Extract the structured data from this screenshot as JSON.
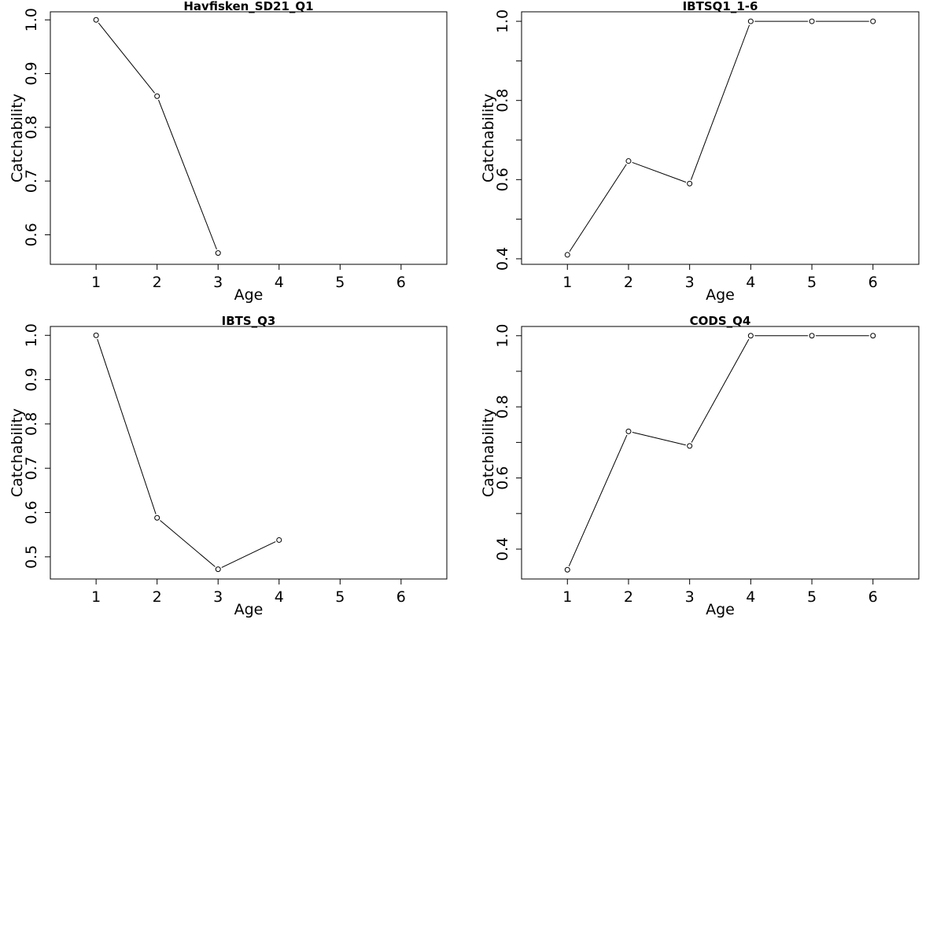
{
  "chart_data": [
    {
      "type": "line",
      "title": "Havfisken_SD21_Q1",
      "xlabel": "Age",
      "ylabel": "Catchability",
      "xlim": [
        0.25,
        6.75
      ],
      "ylim": [
        0.545,
        1.015
      ],
      "xticks": [
        1,
        2,
        3,
        4,
        5,
        6
      ],
      "xtick_labels": [
        "1",
        "2",
        "3",
        "4",
        "5",
        "6"
      ],
      "yticks": [
        0.6,
        0.7,
        0.8,
        0.9,
        1.0
      ],
      "ytick_labels": [
        "0.6",
        "0.7",
        "0.8",
        "0.9",
        "1.0"
      ],
      "x": [
        1,
        2,
        3
      ],
      "y": [
        1.0,
        0.858,
        0.566
      ]
    },
    {
      "type": "line",
      "title": "IBTSQ1_1-6",
      "xlabel": "Age",
      "ylabel": "Catchability",
      "xlim": [
        0.25,
        6.75
      ],
      "ylim": [
        0.386,
        1.024
      ],
      "xticks": [
        1,
        2,
        3,
        4,
        5,
        6
      ],
      "xtick_labels": [
        "1",
        "2",
        "3",
        "4",
        "5",
        "6"
      ],
      "yticks": [
        0.4,
        0.5,
        0.6,
        0.7,
        0.8,
        0.9,
        1.0
      ],
      "ytick_labels": [
        "0.4",
        "",
        "0.6",
        "",
        "0.8",
        "",
        "1.0"
      ],
      "x": [
        1,
        2,
        3,
        4,
        5,
        6
      ],
      "y": [
        0.41,
        0.647,
        0.59,
        1.0,
        1.0,
        1.0
      ]
    },
    {
      "type": "line",
      "title": "IBTS_Q3",
      "xlabel": "Age",
      "ylabel": "Catchability",
      "xlim": [
        0.25,
        6.75
      ],
      "ylim": [
        0.45,
        1.02
      ],
      "xticks": [
        1,
        2,
        3,
        4,
        5,
        6
      ],
      "xtick_labels": [
        "1",
        "2",
        "3",
        "4",
        "5",
        "6"
      ],
      "yticks": [
        0.5,
        0.6,
        0.7,
        0.8,
        0.9,
        1.0
      ],
      "ytick_labels": [
        "0.5",
        "0.6",
        "0.7",
        "0.8",
        "0.9",
        "1.0"
      ],
      "x": [
        1,
        2,
        3,
        4
      ],
      "y": [
        1.0,
        0.588,
        0.472,
        0.538
      ]
    },
    {
      "type": "line",
      "title": "CODS_Q4",
      "xlabel": "Age",
      "ylabel": "Catchability",
      "xlim": [
        0.25,
        6.75
      ],
      "ylim": [
        0.316,
        1.026
      ],
      "xticks": [
        1,
        2,
        3,
        4,
        5,
        6
      ],
      "xtick_labels": [
        "1",
        "2",
        "3",
        "4",
        "5",
        "6"
      ],
      "yticks": [
        0.4,
        0.5,
        0.6,
        0.7,
        0.8,
        0.9,
        1.0
      ],
      "ytick_labels": [
        "0.4",
        "",
        "0.6",
        "",
        "0.8",
        "",
        "1.0"
      ],
      "x": [
        1,
        2,
        3,
        4,
        5,
        6
      ],
      "y": [
        0.342,
        0.731,
        0.69,
        1.0,
        1.0,
        1.0
      ]
    }
  ]
}
